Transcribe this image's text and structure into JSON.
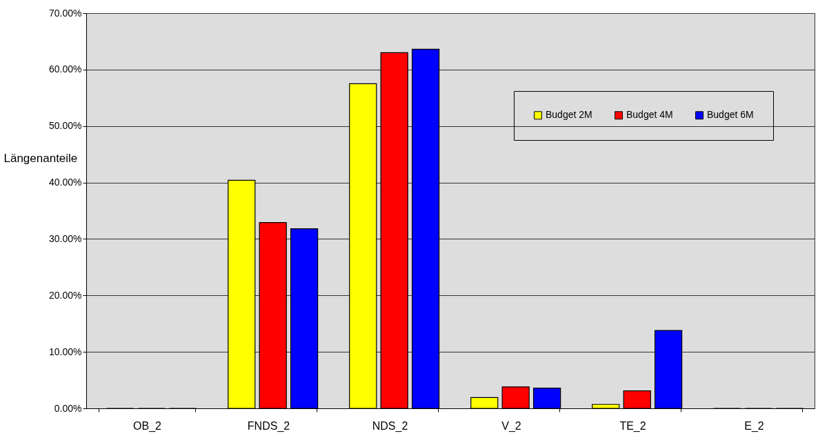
{
  "chart_data": {
    "type": "bar",
    "ylabel": "Längenanteile",
    "categories": [
      "OB_2",
      "FNDS_2",
      "NDS_2",
      "V_2",
      "TE_2",
      "E_2"
    ],
    "series": [
      {
        "name": "Budget 2M",
        "color": "#ffff00",
        "values": [
          0,
          40.4,
          57.5,
          1.9,
          0.7,
          0
        ]
      },
      {
        "name": "Budget 4M",
        "color": "#ff0000",
        "values": [
          0,
          32.9,
          63.0,
          3.8,
          3.1,
          0
        ]
      },
      {
        "name": "Budget 6M",
        "color": "#0000ff",
        "values": [
          0,
          31.8,
          63.6,
          3.6,
          13.8,
          0
        ]
      }
    ],
    "ylim": [
      0,
      70
    ],
    "yticks": [
      {
        "value": 0,
        "label": "0.00%"
      },
      {
        "value": 10,
        "label": "10.00%"
      },
      {
        "value": 20,
        "label": "20.00%"
      },
      {
        "value": 30,
        "label": "30.00%"
      },
      {
        "value": 40,
        "label": "40.00%"
      },
      {
        "value": 50,
        "label": "50.00%"
      },
      {
        "value": 60,
        "label": "60.00%"
      },
      {
        "value": 70,
        "label": "70.00%"
      }
    ],
    "grid": "y",
    "legend": "top right"
  }
}
